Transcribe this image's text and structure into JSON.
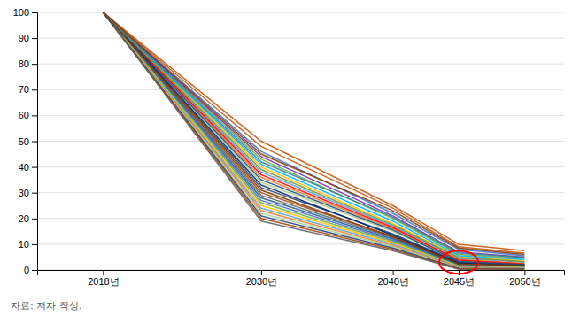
{
  "chart_data": {
    "type": "line",
    "x": [
      2018,
      2030,
      2040,
      2045,
      2050
    ],
    "xlim": [
      2013,
      2053
    ],
    "xticks": [
      {
        "value": 2018,
        "label": "2018년"
      },
      {
        "value": 2030,
        "label": "2030년"
      },
      {
        "value": 2040,
        "label": "2040년"
      },
      {
        "value": 2045,
        "label": "2045년"
      },
      {
        "value": 2050,
        "label": "2050년"
      }
    ],
    "ylim": [
      0,
      100
    ],
    "yticks": [
      0,
      10,
      20,
      30,
      40,
      50,
      60,
      70,
      80,
      90,
      100
    ],
    "grid": true,
    "series": [
      {
        "color": "#c55a11",
        "values": [
          100,
          50,
          25,
          10,
          7.5
        ]
      },
      {
        "color": "#4472c4",
        "values": [
          100,
          46,
          22,
          8,
          5.5
        ]
      },
      {
        "color": "#70ad47",
        "values": [
          100,
          43,
          20,
          6,
          4.5
        ]
      },
      {
        "color": "#ffc000",
        "values": [
          100,
          40,
          18,
          5,
          3.5
        ]
      },
      {
        "color": "#5b9bd5",
        "values": [
          100,
          38,
          17,
          4.5,
          3.0
        ]
      },
      {
        "color": "#ed7d31",
        "values": [
          100,
          36,
          16,
          4.0,
          2.5
        ]
      },
      {
        "color": "#a9d18e",
        "values": [
          100,
          34,
          15,
          3.5,
          2.2
        ]
      },
      {
        "color": "#264478",
        "values": [
          100,
          32,
          14,
          3.0,
          2.0
        ]
      },
      {
        "color": "#9e480e",
        "values": [
          100,
          30,
          13,
          2.5,
          1.8
        ]
      },
      {
        "color": "#636363",
        "values": [
          100,
          29,
          12.5,
          2.2,
          1.6
        ]
      },
      {
        "color": "#255e91",
        "values": [
          100,
          28,
          12,
          2.0,
          1.4
        ]
      },
      {
        "color": "#4472c4",
        "values": [
          100,
          27,
          11.5,
          1.8,
          1.2
        ]
      },
      {
        "color": "#70ad47",
        "values": [
          100,
          26,
          11,
          1.6,
          1.0
        ]
      },
      {
        "color": "#ffc000",
        "values": [
          100,
          25,
          10.5,
          1.4,
          0.9
        ]
      },
      {
        "color": "#5b9bd5",
        "values": [
          100,
          24,
          10,
          1.2,
          0.8
        ]
      },
      {
        "color": "#ed7d31",
        "values": [
          100,
          23,
          9.5,
          1.0,
          0.6
        ]
      },
      {
        "color": "#a9d18e",
        "values": [
          100,
          22,
          9.0,
          0.8,
          0.5
        ]
      },
      {
        "color": "#264478",
        "values": [
          100,
          21,
          8.5,
          0.6,
          0.4
        ]
      },
      {
        "color": "#9e480e",
        "values": [
          100,
          20,
          8.0,
          0.5,
          0.3
        ]
      },
      {
        "color": "#636363",
        "values": [
          100,
          19,
          7.5,
          0.3,
          0.2
        ]
      },
      {
        "color": "#c55a11",
        "values": [
          100,
          48,
          24,
          9,
          6.5
        ]
      },
      {
        "color": "#7030a0",
        "values": [
          100,
          44,
          21,
          7,
          5.0
        ]
      },
      {
        "color": "#00b0f0",
        "values": [
          100,
          41,
          19,
          5.5,
          4.0
        ]
      },
      {
        "color": "#ff0000",
        "values": [
          100,
          37,
          16.5,
          3.8,
          2.3
        ]
      },
      {
        "color": "#002060",
        "values": [
          100,
          33,
          13.5,
          2.7,
          1.9
        ]
      },
      {
        "color": "#833c00",
        "values": [
          100,
          31,
          12.8,
          2.3,
          1.7
        ]
      },
      {
        "color": "#1f497d",
        "values": [
          100,
          35,
          15.5,
          3.3,
          2.1
        ]
      },
      {
        "color": "#76923c",
        "values": [
          100,
          39,
          17.5,
          4.8,
          3.2
        ]
      },
      {
        "color": "#31849b",
        "values": [
          100,
          42,
          20.5,
          6.5,
          4.8
        ]
      },
      {
        "color": "#843c0c",
        "values": [
          100,
          45,
          23,
          8.5,
          6.0
        ]
      }
    ],
    "annotations": [
      {
        "x": 2045,
        "y": 3.0,
        "color": "red"
      }
    ],
    "caption": "자료: 저자 작성."
  }
}
